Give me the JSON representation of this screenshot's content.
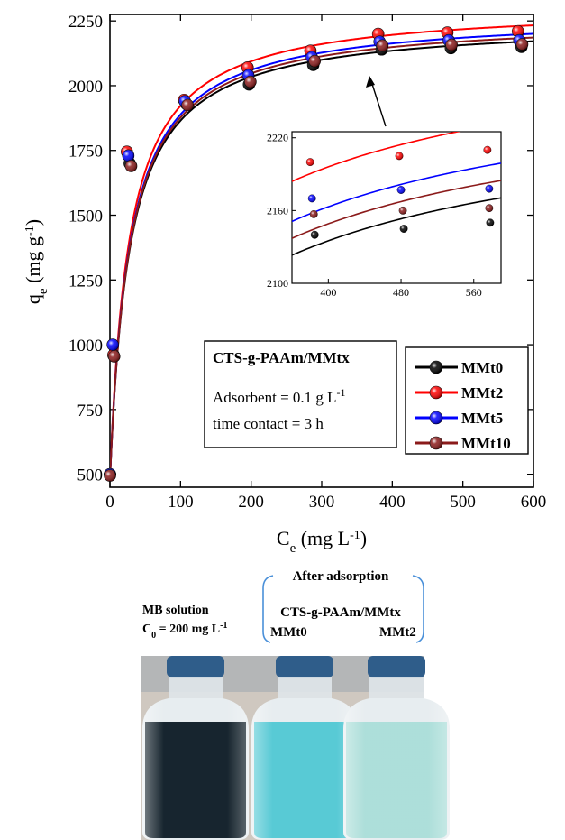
{
  "chart_data": {
    "type": "scatter",
    "xlabel_main": "C",
    "xlabel_sub": "e",
    "xlabel_units_pre": " (mg L",
    "xlabel_units_sup": "-1",
    "xlabel_units_post": ")",
    "ylabel_main": "q",
    "ylabel_sub": "e",
    "ylabel_units_pre": " (mg g",
    "ylabel_units_sup": "-1",
    "ylabel_units_post": ")",
    "xlim": [
      0,
      600
    ],
    "ylim": [
      450,
      2275
    ],
    "x_ticks": [
      "0",
      "100",
      "200",
      "300",
      "400",
      "500",
      "600"
    ],
    "y_ticks": [
      "500",
      "750",
      "1000",
      "1250",
      "1500",
      "1750",
      "2000",
      "2250"
    ],
    "info_box": {
      "title": "CTS-g-PAAm/MMtx",
      "line1_pre": "Adsorbent  = 0.1 g L",
      "line1_sup": "-1",
      "line2": "time contact = 3 h"
    },
    "legend_position": "bottom-right",
    "series": [
      {
        "name": "MMt0",
        "color": "#000000",
        "points": [
          [
            0,
            500
          ],
          [
            5,
            960
          ],
          [
            28,
            1700
          ],
          [
            108,
            1930
          ],
          [
            197,
            2005
          ],
          [
            288,
            2080
          ],
          [
            385,
            2140
          ],
          [
            483,
            2145
          ],
          [
            583,
            2150
          ]
        ],
        "curve": {
          "qm": 2250,
          "K": 0.036
        }
      },
      {
        "name": "MMt2",
        "color": "#ff0000",
        "points": [
          [
            0,
            500
          ],
          [
            5,
            960
          ],
          [
            24,
            1745
          ],
          [
            105,
            1945
          ],
          [
            195,
            2070
          ],
          [
            284,
            2135
          ],
          [
            380,
            2200
          ],
          [
            478,
            2205
          ],
          [
            578,
            2210
          ]
        ],
        "curve": {
          "qm": 2312,
          "K": 0.037
        }
      },
      {
        "name": "MMt5",
        "color": "#0000ff",
        "points": [
          [
            0,
            500
          ],
          [
            4,
            1000
          ],
          [
            26,
            1730
          ],
          [
            106,
            1940
          ],
          [
            196,
            2040
          ],
          [
            286,
            2110
          ],
          [
            382,
            2170
          ],
          [
            480,
            2175
          ],
          [
            580,
            2175
          ]
        ],
        "curve": {
          "qm": 2280,
          "K": 0.036
        }
      },
      {
        "name": "MMt10",
        "color": "#8b1a1a",
        "points": [
          [
            0,
            495
          ],
          [
            6,
            955
          ],
          [
            30,
            1690
          ],
          [
            110,
            1925
          ],
          [
            199,
            2015
          ],
          [
            290,
            2095
          ],
          [
            386,
            2155
          ],
          [
            484,
            2158
          ],
          [
            584,
            2160
          ]
        ],
        "curve": {
          "qm": 2265,
          "K": 0.036
        }
      }
    ],
    "inset": {
      "xlim": [
        360,
        590
      ],
      "ylim": [
        2100,
        2225
      ],
      "x_ticks": [
        "400",
        "480",
        "560"
      ],
      "y_ticks": [
        "2100",
        "2160",
        "2220"
      ],
      "series": [
        {
          "name": "MMt0",
          "color": "#000000",
          "points": [
            [
              385,
              2140
            ],
            [
              483,
              2145
            ],
            [
              578,
              2150
            ]
          ]
        },
        {
          "name": "MMt2",
          "color": "#ff0000",
          "points": [
            [
              380,
              2200
            ],
            [
              478,
              2205
            ],
            [
              575,
              2210
            ]
          ]
        },
        {
          "name": "MMt5",
          "color": "#0000ff",
          "points": [
            [
              382,
              2170
            ],
            [
              480,
              2177
            ],
            [
              577,
              2178
            ]
          ]
        },
        {
          "name": "MMt10",
          "color": "#8b1a1a",
          "points": [
            [
              384,
              2157
            ],
            [
              482,
              2160
            ],
            [
              577,
              2162
            ]
          ]
        }
      ]
    }
  },
  "photo": {
    "bottle1_label_line1": "MB solution",
    "bottle1_label_line2": "C",
    "bottle1_label_line2_sub": "0",
    "bottle1_label_line2_rest": " = 200 mg L",
    "bottle1_label_line2_sup": "-1",
    "group_heading": "After adsorption",
    "group_subheading": "CTS-g-PAAm/MMtx",
    "bottle2_label": "MMt0",
    "bottle3_label": "MMt2",
    "colors": {
      "dark_solution": "#0b1a24",
      "mmt0_solution": "#4fc7d3",
      "mmt2_solution": "#a9ddd8",
      "cap": "#2f5d8a",
      "background": "#cfc8c0"
    }
  }
}
